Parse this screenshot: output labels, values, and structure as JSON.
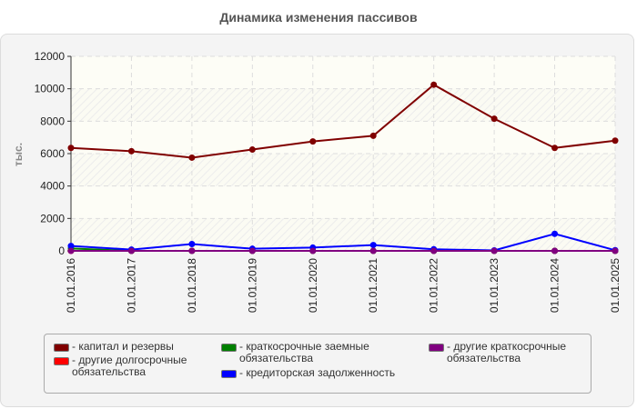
{
  "title": "Динамика изменения пассивов",
  "chart_data": {
    "type": "line",
    "title": "Динамика изменения пассивов",
    "xlabel": "",
    "ylabel": "тыс.",
    "ylim": [
      0,
      12000
    ],
    "yticks": [
      0,
      2000,
      4000,
      6000,
      8000,
      10000,
      12000
    ],
    "grid": true,
    "legend_position": "bottom",
    "categories": [
      "01.01.2016",
      "01.01.2017",
      "01.01.2018",
      "01.01.2019",
      "01.01.2020",
      "01.01.2021",
      "01.01.2022",
      "01.01.2023",
      "01.01.2024",
      "01.01.2025"
    ],
    "series": [
      {
        "name": "капитал и резервы",
        "color": "#800000",
        "values": [
          6350,
          6150,
          5750,
          6250,
          6750,
          7100,
          10250,
          8150,
          6350,
          6800
        ]
      },
      {
        "name": "другие долгосрочные обязательства",
        "color": "#ff0000",
        "values": [
          0,
          0,
          0,
          0,
          0,
          0,
          0,
          0,
          0,
          0
        ]
      },
      {
        "name": "краткосрочные заемные обязательства",
        "color": "#008000",
        "values": [
          150,
          0,
          0,
          0,
          0,
          0,
          0,
          0,
          0,
          0
        ]
      },
      {
        "name": "кредиторская задолженность",
        "color": "#0000ff",
        "values": [
          300,
          80,
          420,
          130,
          200,
          360,
          100,
          30,
          1050,
          40
        ]
      },
      {
        "name": "другие краткосрочные обязательства",
        "color": "#800080",
        "values": [
          0,
          0,
          0,
          0,
          0,
          0,
          0,
          0,
          0,
          0
        ]
      }
    ]
  },
  "legend": {
    "items": [
      {
        "label": "- капитал и резервы",
        "color": "#800000"
      },
      {
        "label": "- другие долгосрочные\nобязательства",
        "color": "#ff0000"
      },
      {
        "label": "- краткосрочные заемные\nобязательства",
        "color": "#008000"
      },
      {
        "label": "- кредиторская задолженность",
        "color": "#0000ff"
      },
      {
        "label": "- другие краткосрочные\nобязательства",
        "color": "#800080"
      }
    ]
  }
}
